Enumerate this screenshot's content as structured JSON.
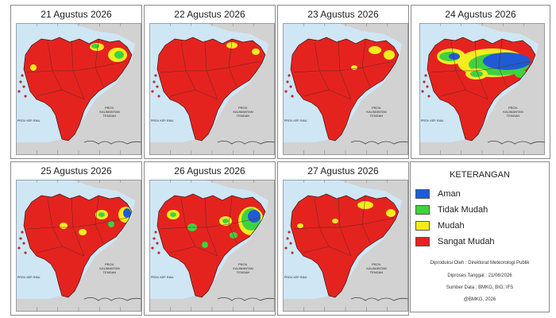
{
  "panels": [
    {
      "date": "21 Agustus 2026",
      "pattern": 0
    },
    {
      "date": "22 Agustus 2026",
      "pattern": 1
    },
    {
      "date": "23 Agustus 2026",
      "pattern": 2
    },
    {
      "date": "24 Agustus 2026",
      "pattern": 3
    },
    {
      "date": "25 Agustus 2026",
      "pattern": 4
    },
    {
      "date": "26 Agustus 2026",
      "pattern": 5
    },
    {
      "date": "27 Agustus 2026",
      "pattern": 6
    }
  ],
  "map_labels": {
    "neighbor": "PROV. KALIMANTAN TENGAH",
    "west_label": "PROV. KEP. RIAU"
  },
  "legend": {
    "title": "KETERANGAN",
    "items": [
      {
        "label": "Aman",
        "color": "#1f5bd6"
      },
      {
        "label": "Tidak Mudah",
        "color": "#3fd23f"
      },
      {
        "label": "Mudah",
        "color": "#f3ec1f"
      },
      {
        "label": "Sangat Mudah",
        "color": "#e5231e"
      }
    ],
    "produced_by": "Diproduksi Oleh : Direktorat Meteorologi Publik",
    "processed_date": "Diproses Tanggal : 21/08/2026",
    "data_source": "Sumber Data : BMKG, BIG, IFS",
    "copyright": "@BMKG, 2026"
  },
  "colors": {
    "sea": "#cfe6f5",
    "land_other": "#d2d2d2",
    "border": "#5a2a2a"
  }
}
